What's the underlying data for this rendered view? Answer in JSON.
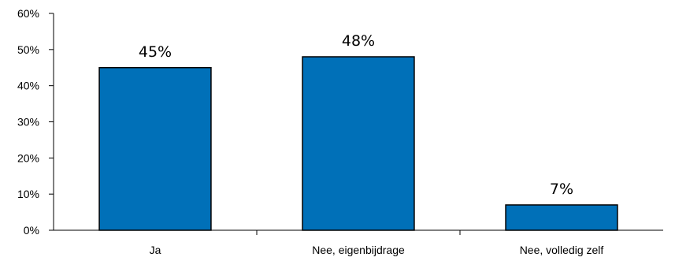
{
  "chart_data": {
    "type": "bar",
    "categories": [
      "Ja",
      "Nee, eigenbijdrage",
      "Nee, volledig zelf"
    ],
    "values": [
      45,
      48,
      7
    ],
    "data_labels": [
      "45%",
      "48%",
      "7%"
    ],
    "ylim": [
      0,
      60
    ],
    "yticks": [
      0,
      10,
      20,
      30,
      40,
      50,
      60
    ],
    "ytick_labels": [
      "0%",
      "10%",
      "20%",
      "30%",
      "40%",
      "50%",
      "60%"
    ],
    "grid": false,
    "bar_color": "#0070b8",
    "bar_edge_color": "#000000"
  }
}
